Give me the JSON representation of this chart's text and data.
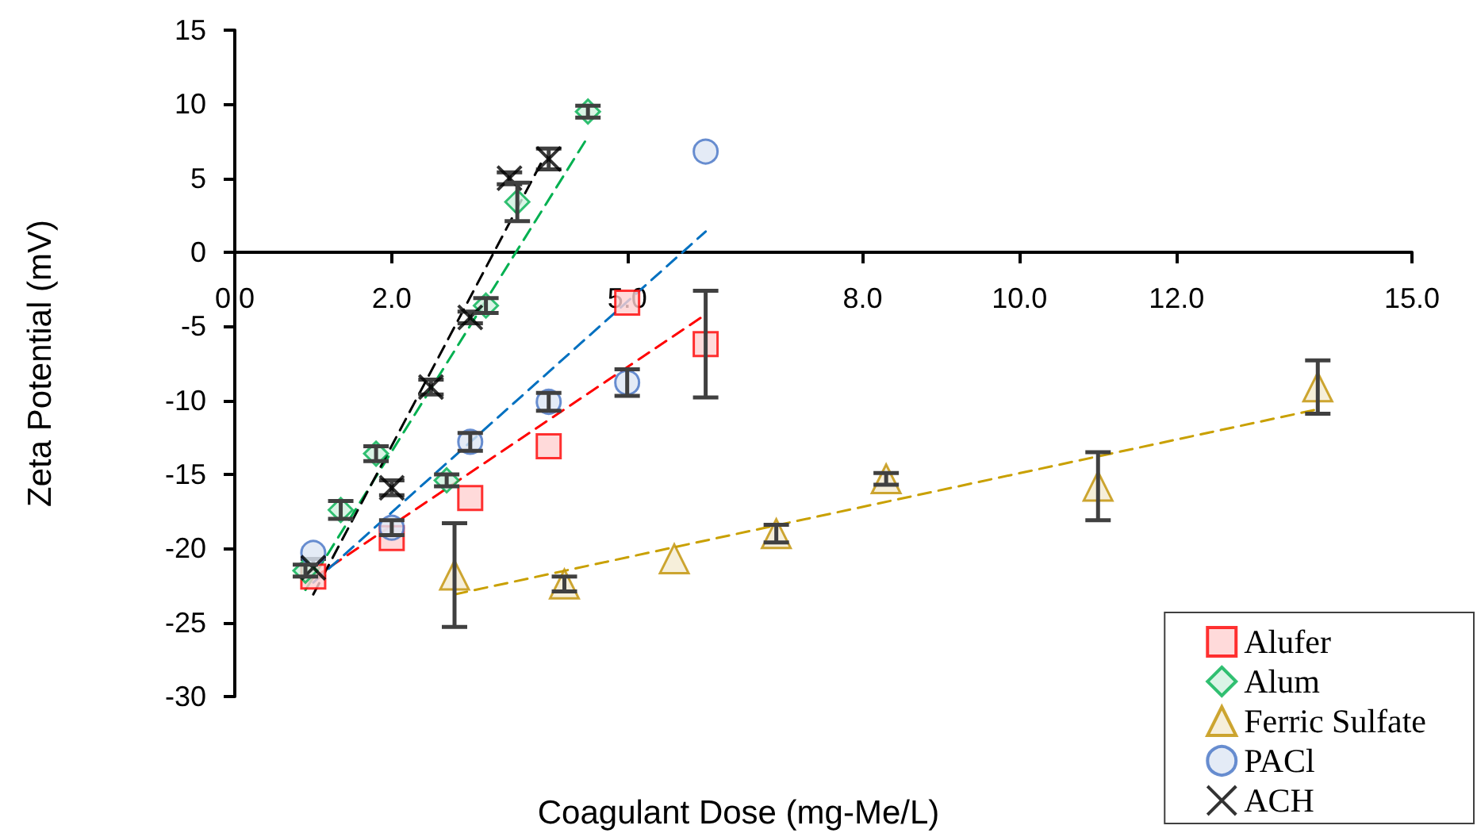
{
  "chart_data": {
    "type": "scatter",
    "xlabel": "Coagulant Dose (mg-Me/L)",
    "ylabel": "Zeta Potential (mV)",
    "xlim": [
      0,
      15
    ],
    "xticks": [
      {
        "value": 0,
        "label": "0.0"
      },
      {
        "value": 2,
        "label": "2.0"
      },
      {
        "value": 5,
        "label": "5.0"
      },
      {
        "value": 8,
        "label": "8.0"
      },
      {
        "value": 10,
        "label": "10.0"
      },
      {
        "value": 12,
        "label": "12.0"
      },
      {
        "value": 15,
        "label": "15.0"
      }
    ],
    "ylim": [
      -30,
      15
    ],
    "yticks": [
      -30,
      -25,
      -20,
      -15,
      -10,
      -5,
      0,
      5,
      10,
      15
    ],
    "grid": false,
    "legend": "bottom right",
    "series": [
      {
        "name": "Alufer",
        "type": "scatter",
        "marker": "square",
        "color": "#ff0000",
        "x": [
          1,
          2,
          3,
          4,
          5,
          6
        ],
        "values": [
          -21.9,
          -19.3,
          -16.6,
          -13.1,
          -3.4,
          -6.2
        ],
        "errors": [
          null,
          null,
          null,
          null,
          null,
          3.6
        ]
      },
      {
        "name": "Alum",
        "type": "scatter",
        "marker": "diamond",
        "color": "#00b050",
        "x": [
          0.9,
          1.35,
          1.8,
          2.7,
          3.2,
          3.6,
          4.5
        ],
        "values": [
          -21.5,
          -17.4,
          -13.6,
          -15.4,
          -3.6,
          3.4,
          9.5
        ],
        "errors": [
          0.4,
          0.6,
          0.5,
          0.4,
          0.5,
          1.3,
          0.4
        ]
      },
      {
        "name": "Ferric Sulfate",
        "type": "scatter",
        "marker": "triangle",
        "color": "#c09000",
        "x": [
          2.8,
          4.2,
          5.6,
          6.9,
          8.3,
          11,
          13.8
        ],
        "values": [
          -21.8,
          -22.4,
          -20.7,
          -19,
          -15.3,
          -15.8,
          -9.1
        ],
        "errors": [
          3.5,
          0.5,
          null,
          0.6,
          0.4,
          2.3,
          1.8
        ]
      },
      {
        "name": "PACl",
        "type": "scatter",
        "marker": "circle",
        "color": "#4472c4",
        "x": [
          1,
          2,
          3,
          4,
          5,
          6
        ],
        "values": [
          -20.3,
          -18.6,
          -12.8,
          -10.1,
          -8.8,
          6.8
        ],
        "errors": [
          null,
          0.5,
          0.6,
          0.6,
          0.9,
          null
        ]
      },
      {
        "name": "ACH",
        "type": "scatter",
        "marker": "cross",
        "color": "#000000",
        "x": [
          1,
          2,
          2.5,
          3,
          3.5,
          4
        ],
        "values": [
          -21.3,
          -15.9,
          -9.1,
          -4.4,
          5,
          6.3
        ],
        "errors": [
          0.6,
          0.5,
          0.5,
          0.4,
          0.4,
          0.7
        ]
      },
      {
        "type": "line",
        "marker": "none",
        "line_style": "dashed",
        "color": "#ff0000",
        "x": [
          1,
          6
        ],
        "values": [
          -22,
          -4.2
        ]
      },
      {
        "type": "line",
        "marker": "none",
        "line_style": "dashed",
        "color": "#00b050",
        "x": [
          0.9,
          4.5
        ],
        "values": [
          -22.8,
          7.8
        ]
      },
      {
        "type": "line",
        "marker": "none",
        "line_style": "dashed",
        "color": "#c9a000",
        "x": [
          2.8,
          13.8
        ],
        "values": [
          -23.1,
          -10.6
        ]
      },
      {
        "type": "line",
        "marker": "none",
        "line_style": "dashed",
        "color": "#0070c0",
        "x": [
          1,
          6
        ],
        "values": [
          -22.3,
          1.4
        ]
      },
      {
        "type": "line",
        "marker": "none",
        "line_style": "dashed",
        "color": "#000000",
        "x": [
          1,
          3.9
        ],
        "values": [
          -23.1,
          6
        ]
      }
    ]
  }
}
